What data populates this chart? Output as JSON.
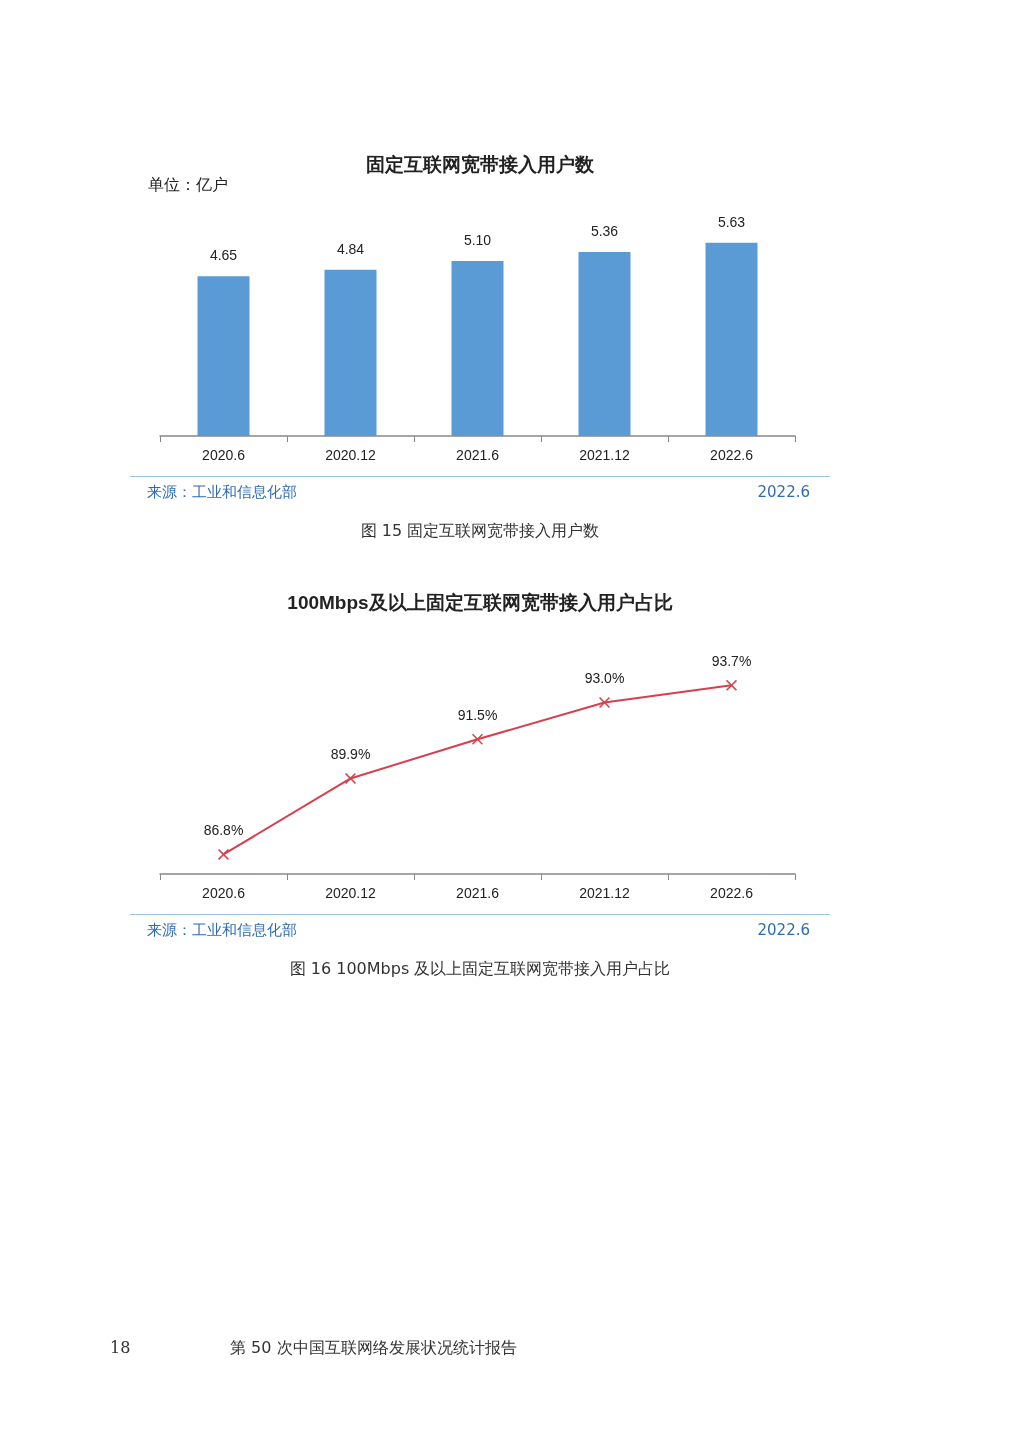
{
  "chart_data": [
    {
      "type": "bar",
      "title": "固定互联网宽带接入用户数",
      "ylabel": "单位：亿户",
      "categories": [
        "2020.6",
        "2020.12",
        "2021.6",
        "2021.12",
        "2022.6"
      ],
      "values": [
        4.65,
        4.84,
        5.1,
        5.36,
        5.63
      ],
      "value_labels": [
        "4.65",
        "4.84",
        "5.10",
        "5.36",
        "5.63"
      ],
      "color": "#5b9bd5",
      "grid": false,
      "annotations": [
        "来源：工业和信息化部",
        "2022.6",
        "图 15  固定互联网宽带接入用户数"
      ]
    },
    {
      "type": "line",
      "title": "100Mbps及以上固定互联网宽带接入用户占比",
      "categories": [
        "2020.6",
        "2020.12",
        "2021.6",
        "2021.12",
        "2022.6"
      ],
      "values": [
        86.8,
        89.9,
        91.5,
        93.0,
        93.7
      ],
      "value_labels": [
        "86.8%",
        "89.9%",
        "91.5%",
        "93.0%",
        "93.7%"
      ],
      "color": "#d6404e",
      "marker": "cross",
      "line_style": "solid",
      "grid": false,
      "annotations": [
        "来源：工业和信息化部",
        "2022.6",
        "图 16  100Mbps 及以上固定互联网宽带接入用户占比",
        "18",
        "第 50 次中国互联网络发展状况统计报告"
      ]
    }
  ]
}
